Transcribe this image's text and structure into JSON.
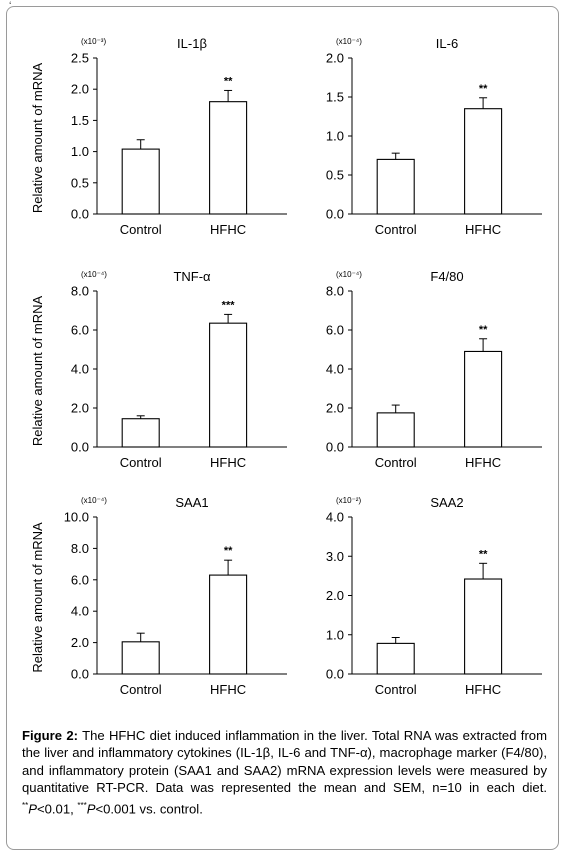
{
  "corner_mark": "‘",
  "y_axis_label": "Relative amount of mRNA",
  "chart_data": [
    {
      "type": "bar",
      "title": "IL-1β",
      "scale_label": "(x10⁻³)",
      "categories": [
        "Control",
        "HFHC"
      ],
      "values": [
        1.04,
        1.8
      ],
      "errors": [
        0.15,
        0.18
      ],
      "significance": [
        "",
        "**"
      ],
      "ylim": [
        0,
        2.5
      ],
      "yticks": [
        "0.0",
        "0.5",
        "1.0",
        "1.5",
        "2.0",
        "2.5"
      ],
      "ylabel": "Relative amount of mRNA"
    },
    {
      "type": "bar",
      "title": "IL-6",
      "scale_label": "(x10⁻⁴)",
      "categories": [
        "Control",
        "HFHC"
      ],
      "values": [
        0.7,
        1.35
      ],
      "errors": [
        0.08,
        0.14
      ],
      "significance": [
        "",
        "**"
      ],
      "ylim": [
        0,
        2.0
      ],
      "yticks": [
        "0.0",
        "0.5",
        "1.0",
        "1.5",
        "2.0"
      ],
      "ylabel": ""
    },
    {
      "type": "bar",
      "title": "TNF-α",
      "scale_label": "(x10⁻⁴)",
      "categories": [
        "Control",
        "HFHC"
      ],
      "values": [
        1.45,
        6.35
      ],
      "errors": [
        0.15,
        0.45
      ],
      "significance": [
        "",
        "***"
      ],
      "ylim": [
        0,
        8.0
      ],
      "yticks": [
        "0.0",
        "2.0",
        "4.0",
        "6.0",
        "8.0"
      ],
      "ylabel": "Relative amount of mRNA"
    },
    {
      "type": "bar",
      "title": "F4/80",
      "scale_label": "(x10⁻⁴)",
      "categories": [
        "Control",
        "HFHC"
      ],
      "values": [
        1.75,
        4.9
      ],
      "errors": [
        0.4,
        0.65
      ],
      "significance": [
        "",
        "**"
      ],
      "ylim": [
        0,
        8.0
      ],
      "yticks": [
        "0.0",
        "2.0",
        "4.0",
        "6.0",
        "8.0"
      ],
      "ylabel": ""
    },
    {
      "type": "bar",
      "title": "SAA1",
      "scale_label": "(x10⁻⁴)",
      "categories": [
        "Control",
        "HFHC"
      ],
      "values": [
        2.05,
        6.3
      ],
      "errors": [
        0.55,
        0.95
      ],
      "significance": [
        "",
        "**"
      ],
      "ylim": [
        0,
        10.0
      ],
      "yticks": [
        "0.0",
        "2.0",
        "4.0",
        "6.0",
        "8.0",
        "10.0"
      ],
      "ylabel": "Relative amount of mRNA"
    },
    {
      "type": "bar",
      "title": "SAA2",
      "scale_label": "(x10⁻²)",
      "categories": [
        "Control",
        "HFHC"
      ],
      "values": [
        0.78,
        2.42
      ],
      "errors": [
        0.15,
        0.4
      ],
      "significance": [
        "",
        "**"
      ],
      "ylim": [
        0,
        4.0
      ],
      "yticks": [
        "0.0",
        "1.0",
        "2.0",
        "3.0",
        "4.0"
      ],
      "ylabel": ""
    }
  ],
  "caption": {
    "label": "Figure 2:",
    "text": " The HFHC diet induced inflammation in the liver. Total RNA was extracted from the liver and inflammatory cytokines (IL-1β, IL-6 and TNF-α), macrophage marker (F4/80), and inflammatory protein (SAA1 and SAA2) mRNA expression levels were measured by quantitative RT-PCR. Data was represented the mean and SEM, n=10 in each diet. ",
    "sig2": "**",
    "p1": "P",
    "p1_value": "<0.01, ",
    "sig3": "***",
    "p2": "P",
    "p2_value": "<0.001 vs. control."
  }
}
